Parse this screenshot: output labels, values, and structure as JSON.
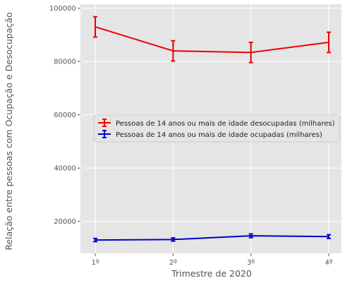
{
  "chart_data": {
    "type": "line",
    "title": "",
    "xlabel": "Trimestre de 2020",
    "ylabel": "Relação entre pessoas com Ocupação e Desocupação",
    "categories": [
      "1º",
      "2º",
      "3º",
      "4º"
    ],
    "ylim": [
      8000,
      101500
    ],
    "yticks": [
      20000,
      40000,
      60000,
      80000,
      100000
    ],
    "grid": true,
    "legend_position": "center-right",
    "series": [
      {
        "name": "Pessoas de 14 anos ou mais de idade desocupadas (milhares)",
        "color": "#ee0000",
        "values": [
          93000,
          84000,
          83400,
          87200
        ],
        "errors": [
          3800,
          3800,
          3800,
          3800
        ]
      },
      {
        "name": "Pessoas de 14 anos ou mais de idade ocupadas (milhares)",
        "color": "#0000cc",
        "values": [
          13000,
          13200,
          14600,
          14300
        ],
        "errors": [
          600,
          600,
          700,
          700
        ]
      }
    ]
  }
}
